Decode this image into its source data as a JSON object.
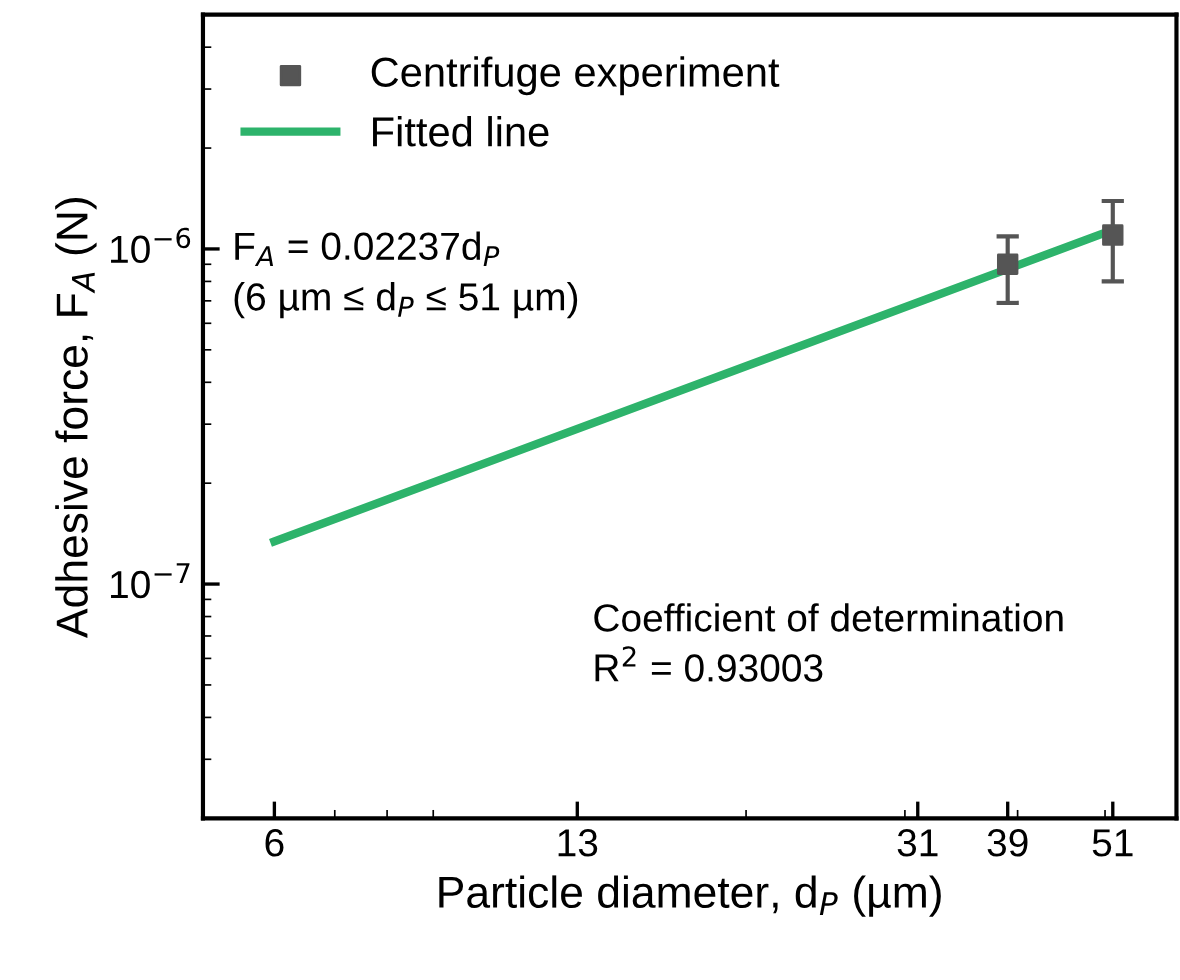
{
  "chart_data": {
    "type": "scatter",
    "xlabel": "Particle diameter, d$_{P}$ (µm)",
    "ylabel": "Adhesive force, F$_{A}$ (N)",
    "log": "xy",
    "xlim": [
      5,
      60
    ],
    "xticks": [
      6,
      13,
      31,
      39,
      51
    ],
    "ylim": [
      2e-08,
      5e-06
    ],
    "yticks": [
      {
        "value": 1e-07,
        "label": "10$^{−7}$"
      },
      {
        "value": 1e-06,
        "label": "10$^{−6}$"
      }
    ],
    "series": [
      {
        "name": "Centrifuge experiment",
        "color": "#555555",
        "marker": "square",
        "x": [
          39,
          51
        ],
        "values": [
          9e-07,
          1.1e-06
        ],
        "errors": [
          [
            6.9e-07,
            1.09e-06
          ],
          [
            8e-07,
            1.39e-06
          ]
        ]
      },
      {
        "name": "Fitted line",
        "type": "line",
        "color": "#2db36b",
        "marker": "none",
        "line_style": "solid",
        "x": [
          6,
          51
        ],
        "values": [
          1.34e-07,
          1.14e-06
        ]
      }
    ],
    "annotations": [
      "F$_{A}$ = 0.02237d$_{P}$\n(6 µm ≤ d$_{P}$ ≤ 51 µm)",
      "Coefficient of determination\nR$^{2}$ = 0.93003"
    ],
    "legend": "top left",
    "grid": false
  }
}
